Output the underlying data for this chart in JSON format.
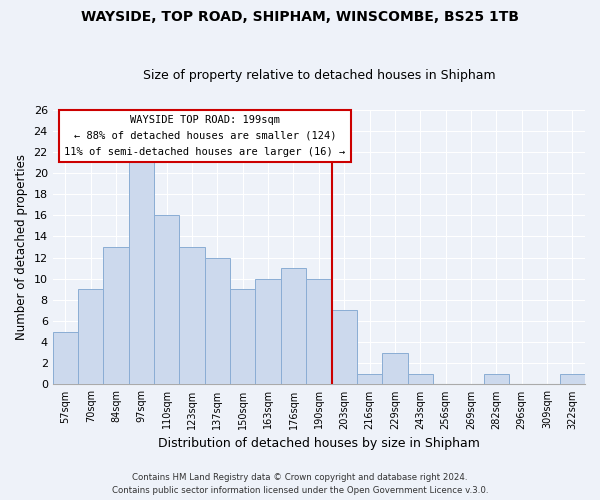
{
  "title": "WAYSIDE, TOP ROAD, SHIPHAM, WINSCOMBE, BS25 1TB",
  "subtitle": "Size of property relative to detached houses in Shipham",
  "xlabel": "Distribution of detached houses by size in Shipham",
  "ylabel": "Number of detached properties",
  "bar_labels": [
    "57sqm",
    "70sqm",
    "84sqm",
    "97sqm",
    "110sqm",
    "123sqm",
    "137sqm",
    "150sqm",
    "163sqm",
    "176sqm",
    "190sqm",
    "203sqm",
    "216sqm",
    "229sqm",
    "243sqm",
    "256sqm",
    "269sqm",
    "282sqm",
    "296sqm",
    "309sqm",
    "322sqm"
  ],
  "bar_values": [
    5,
    9,
    13,
    21,
    16,
    13,
    12,
    9,
    10,
    11,
    10,
    7,
    1,
    3,
    1,
    0,
    0,
    1,
    0,
    0,
    1
  ],
  "bar_color": "#ccd9ed",
  "bar_edgecolor": "#8aadd4",
  "vline_x_idx": 10.5,
  "vline_color": "#cc0000",
  "annotation_title": "WAYSIDE TOP ROAD: 199sqm",
  "annotation_line1": "← 88% of detached houses are smaller (124)",
  "annotation_line2": "11% of semi-detached houses are larger (16) →",
  "annotation_box_color": "#ffffff",
  "annotation_box_edgecolor": "#cc0000",
  "footer_line1": "Contains HM Land Registry data © Crown copyright and database right 2024.",
  "footer_line2": "Contains public sector information licensed under the Open Government Licence v.3.0.",
  "ylim": [
    0,
    26
  ],
  "background_color": "#eef2f9",
  "grid_color": "#ffffff",
  "figsize": [
    6.0,
    5.0
  ],
  "dpi": 100
}
